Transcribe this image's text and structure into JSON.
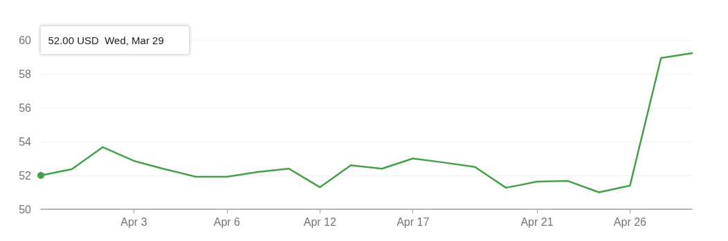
{
  "chart_data": {
    "type": "line",
    "categories": [
      null,
      null,
      null,
      "Apr 3",
      null,
      null,
      "Apr 6",
      null,
      null,
      "Apr 12",
      null,
      null,
      "Apr 17",
      null,
      null,
      null,
      "Apr 21",
      null,
      null,
      "Apr 26",
      null,
      null
    ],
    "series": [
      {
        "color": "#43a047",
        "values": [
          52.0,
          52.37,
          53.67,
          52.86,
          52.37,
          51.92,
          51.92,
          52.2,
          52.4,
          51.3,
          52.6,
          52.4,
          53.0,
          52.76,
          52.5,
          51.27,
          51.63,
          51.67,
          51.0,
          51.4,
          58.94,
          59.22
        ]
      }
    ],
    "ylim": [
      50,
      60
    ],
    "yticks": [
      50,
      52,
      54,
      56,
      58,
      60
    ],
    "grid": "y",
    "marker": "none",
    "line_style": "solid",
    "annotations": [
      "52.00 USD  Wed, Mar 29"
    ]
  }
}
